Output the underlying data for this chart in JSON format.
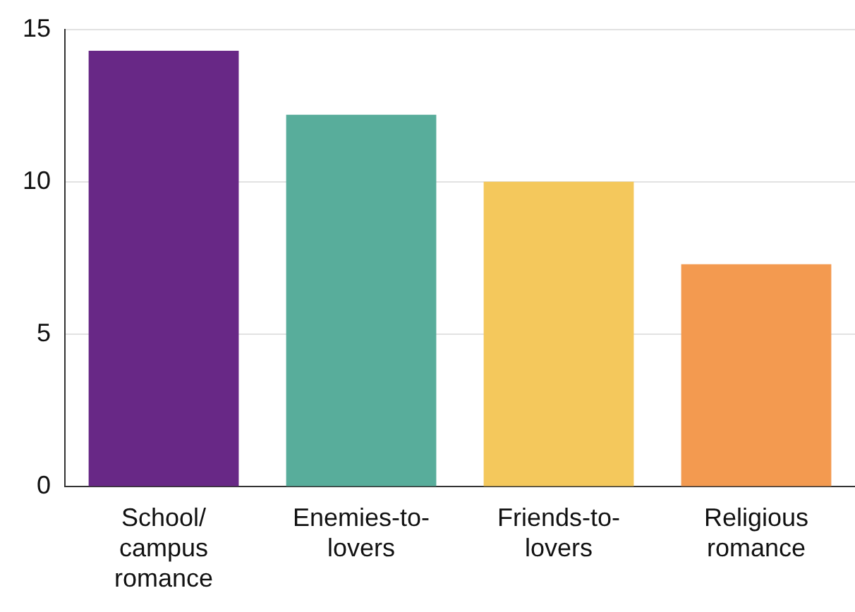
{
  "chart_data": {
    "type": "bar",
    "categories": [
      "School/campus romance",
      "Enemies-to-lovers",
      "Friends-to-lovers",
      "Religious romance"
    ],
    "values": [
      14.3,
      12.2,
      10.0,
      7.3
    ],
    "colors": [
      "#682886",
      "#58ad9b",
      "#f4c85c",
      "#f39a50"
    ],
    "ylim": [
      0,
      15
    ],
    "yticks": [
      0,
      5,
      10,
      15
    ],
    "grid": "y",
    "legend": false
  }
}
